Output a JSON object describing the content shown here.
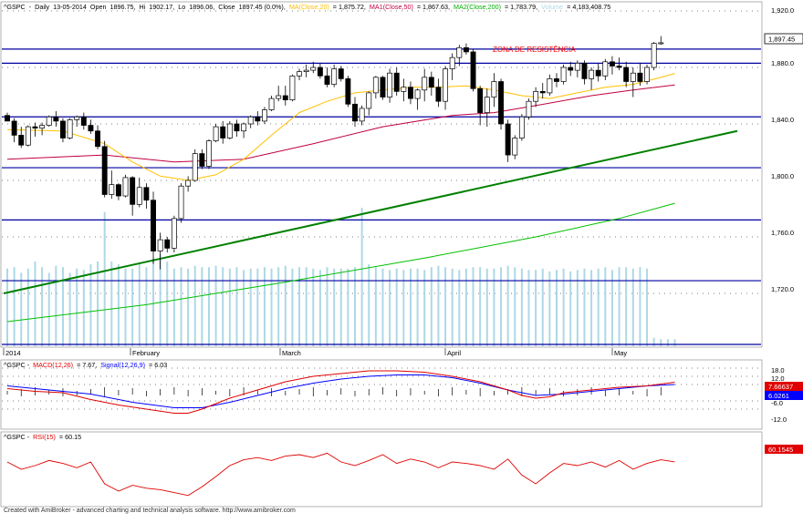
{
  "header": {
    "symbol": "^GSPC",
    "timeframe": "Daily",
    "date": "13-05-2014",
    "open_label": "Open",
    "open": "1896.75",
    "hi_label": "Hi",
    "hi": "1902.17",
    "lo_label": "Lo",
    "lo": "1896.06",
    "close_label": "Close",
    "close": "1897.45 (0.0%)",
    "ma_label": "MA(Close,20)",
    "ma_value": "= 1,875.72,",
    "ma1_label": "MA1(Close,50)",
    "ma1_value": "= 1,867.63,",
    "ma2_label": "MA2(Close,200)",
    "ma2_value": "= 1,783.79,",
    "volume_label": "Volume",
    "volume_value": "= 4,183,408.75"
  },
  "annotation": "ZONA DE RESISTÊNCIA",
  "month_labels": [
    "2014",
    "February",
    "March",
    "April",
    "May"
  ],
  "price_axis": {
    "ticks": [
      "1,920.0",
      "1,880.0",
      "1,840.0",
      "1,800.0",
      "1,760.0",
      "1,720.0"
    ],
    "last_price": "1,897.45"
  },
  "macd_panel": {
    "title_symbol": "^GSPC -",
    "macd_label": "MACD(12,26)",
    "macd_value": "= 7.67,",
    "signal_label": "Signal(12,26,9)",
    "signal_value": "= 6.03",
    "ticks": [
      "18.0",
      "12.0",
      "6.0",
      "-6.0",
      "-12.0"
    ],
    "badge_macd": "7.66637",
    "badge_signal": "6.0261"
  },
  "rsi_panel": {
    "title_symbol": "^GSPC -",
    "rsi_label": "RSI(15)",
    "rsi_value": "= 60.15",
    "badge": "60.1545"
  },
  "footer": "Created with AmiBroker - advanced charting and technical analysis software. http://www.amibroker.com",
  "colors": {
    "up": "#ffffff",
    "down": "#000000",
    "ma20": "#ffc000",
    "ma50": "#c00040",
    "ma200": "#00c000",
    "trend": "#008000",
    "hlines": "#0000a0",
    "volume": "#add8e6",
    "macd": "#e00000",
    "signal": "#0000ff"
  },
  "chart_data": {
    "type": "candlestick",
    "title": "^GSPC - Daily",
    "x_start": "2014-01-02",
    "x_end": "2014-05-13",
    "ylim": [
      1690,
      1930
    ],
    "grid": true,
    "horizontal_levels": [
      1893,
      1883,
      1845,
      1809,
      1772,
      1729
    ],
    "trendline": [
      [
        0,
        1720
      ],
      [
        116,
        1835
      ]
    ],
    "candles": [
      [
        1846,
        1848,
        1842,
        1842
      ],
      [
        1842,
        1844,
        1827,
        1832
      ],
      [
        1832,
        1838,
        1823,
        1825
      ],
      [
        1825,
        1839,
        1824,
        1838
      ],
      [
        1838,
        1841,
        1831,
        1837
      ],
      [
        1837,
        1841,
        1832,
        1839
      ],
      [
        1839,
        1846,
        1838,
        1845
      ],
      [
        1845,
        1849,
        1838,
        1842
      ],
      [
        1842,
        1844,
        1827,
        1830
      ],
      [
        1830,
        1844,
        1829,
        1843
      ],
      [
        1843,
        1846,
        1838,
        1845
      ],
      [
        1845,
        1848,
        1836,
        1839
      ],
      [
        1839,
        1843,
        1833,
        1835
      ],
      [
        1835,
        1839,
        1822,
        1824
      ],
      [
        1824,
        1828,
        1788,
        1790
      ],
      [
        1790,
        1807,
        1787,
        1797
      ],
      [
        1797,
        1798,
        1786,
        1789
      ],
      [
        1789,
        1804,
        1788,
        1802
      ],
      [
        1802,
        1803,
        1775,
        1783
      ],
      [
        1783,
        1802,
        1781,
        1795
      ],
      [
        1795,
        1798,
        1780,
        1786
      ],
      [
        1786,
        1792,
        1741,
        1750
      ],
      [
        1750,
        1763,
        1737,
        1758
      ],
      [
        1758,
        1760,
        1749,
        1752
      ],
      [
        1752,
        1775,
        1749,
        1773
      ],
      [
        1773,
        1798,
        1770,
        1796
      ],
      [
        1796,
        1803,
        1792,
        1800
      ],
      [
        1800,
        1822,
        1799,
        1819
      ],
      [
        1819,
        1822,
        1808,
        1810
      ],
      [
        1810,
        1829,
        1808,
        1828
      ],
      [
        1828,
        1840,
        1827,
        1838
      ],
      [
        1838,
        1842,
        1826,
        1830
      ],
      [
        1830,
        1842,
        1829,
        1840
      ],
      [
        1840,
        1843,
        1831,
        1835
      ],
      [
        1835,
        1841,
        1830,
        1840
      ],
      [
        1840,
        1846,
        1837,
        1845
      ],
      [
        1845,
        1849,
        1839,
        1842
      ],
      [
        1842,
        1852,
        1840,
        1850
      ],
      [
        1850,
        1860,
        1849,
        1858
      ],
      [
        1858,
        1867,
        1856,
        1860
      ],
      [
        1860,
        1867,
        1853,
        1857
      ],
      [
        1857,
        1875,
        1856,
        1874
      ],
      [
        1874,
        1879,
        1871,
        1877
      ],
      [
        1877,
        1882,
        1873,
        1878
      ],
      [
        1878,
        1884,
        1876,
        1880
      ],
      [
        1880,
        1883,
        1872,
        1874
      ],
      [
        1874,
        1880,
        1866,
        1868
      ],
      [
        1868,
        1882,
        1866,
        1879
      ],
      [
        1879,
        1881,
        1870,
        1872
      ],
      [
        1872,
        1874,
        1852,
        1854
      ],
      [
        1854,
        1859,
        1838,
        1842
      ],
      [
        1842,
        1853,
        1839,
        1851
      ],
      [
        1851,
        1863,
        1846,
        1862
      ],
      [
        1862,
        1874,
        1858,
        1873
      ],
      [
        1873,
        1874,
        1857,
        1859
      ],
      [
        1859,
        1879,
        1855,
        1876
      ],
      [
        1876,
        1880,
        1860,
        1863
      ],
      [
        1863,
        1872,
        1856,
        1866
      ],
      [
        1866,
        1870,
        1854,
        1858
      ],
      [
        1858,
        1865,
        1850,
        1864
      ],
      [
        1864,
        1879,
        1856,
        1873
      ],
      [
        1873,
        1877,
        1860,
        1866
      ],
      [
        1866,
        1872,
        1852,
        1856
      ],
      [
        1856,
        1881,
        1850,
        1879
      ],
      [
        1879,
        1890,
        1871,
        1887
      ],
      [
        1887,
        1896,
        1881,
        1894
      ],
      [
        1894,
        1897,
        1889,
        1891
      ],
      [
        1891,
        1893,
        1863,
        1865
      ],
      [
        1865,
        1867,
        1839,
        1848
      ],
      [
        1848,
        1865,
        1838,
        1859
      ],
      [
        1859,
        1876,
        1852,
        1870
      ],
      [
        1870,
        1872,
        1836,
        1840
      ],
      [
        1840,
        1843,
        1813,
        1818
      ],
      [
        1818,
        1832,
        1815,
        1830
      ],
      [
        1830,
        1847,
        1828,
        1845
      ],
      [
        1845,
        1858,
        1843,
        1856
      ],
      [
        1856,
        1866,
        1852,
        1863
      ],
      [
        1863,
        1869,
        1858,
        1862
      ],
      [
        1862,
        1875,
        1860,
        1872
      ],
      [
        1872,
        1876,
        1866,
        1870
      ],
      [
        1870,
        1882,
        1868,
        1880
      ],
      [
        1880,
        1884,
        1874,
        1878
      ],
      [
        1878,
        1885,
        1873,
        1883
      ],
      [
        1883,
        1885,
        1868,
        1872
      ],
      [
        1872,
        1880,
        1864,
        1878
      ],
      [
        1878,
        1883,
        1870,
        1874
      ],
      [
        1874,
        1886,
        1871,
        1884
      ],
      [
        1884,
        1888,
        1875,
        1881
      ],
      [
        1881,
        1887,
        1878,
        1880
      ],
      [
        1880,
        1884,
        1866,
        1870
      ],
      [
        1870,
        1880,
        1859,
        1876
      ],
      [
        1876,
        1883,
        1867,
        1870
      ],
      [
        1870,
        1882,
        1868,
        1880
      ],
      [
        1880,
        1898,
        1878,
        1897
      ],
      [
        1896.75,
        1902.17,
        1896.06,
        1897.45
      ]
    ],
    "ma20": [
      [
        0,
        1836
      ],
      [
        8,
        1835
      ],
      [
        14,
        1826
      ],
      [
        18,
        1813
      ],
      [
        22,
        1803
      ],
      [
        26,
        1800
      ],
      [
        30,
        1804
      ],
      [
        34,
        1815
      ],
      [
        38,
        1832
      ],
      [
        42,
        1848
      ],
      [
        46,
        1856
      ],
      [
        50,
        1862
      ],
      [
        54,
        1864
      ],
      [
        58,
        1866
      ],
      [
        62,
        1866
      ],
      [
        66,
        1867
      ],
      [
        70,
        1864
      ],
      [
        74,
        1860
      ],
      [
        78,
        1858
      ],
      [
        82,
        1862
      ],
      [
        86,
        1866
      ],
      [
        90,
        1868
      ],
      [
        94,
        1873
      ],
      [
        96,
        1875.72
      ]
    ],
    "ma50": [
      [
        0,
        1815
      ],
      [
        14,
        1818
      ],
      [
        24,
        1813
      ],
      [
        34,
        1815
      ],
      [
        44,
        1826
      ],
      [
        54,
        1838
      ],
      [
        64,
        1846
      ],
      [
        70,
        1848
      ],
      [
        76,
        1853
      ],
      [
        84,
        1860
      ],
      [
        90,
        1864
      ],
      [
        96,
        1867.63
      ]
    ],
    "ma200": [
      [
        0,
        1700
      ],
      [
        20,
        1712
      ],
      [
        40,
        1728
      ],
      [
        60,
        1745
      ],
      [
        76,
        1760
      ],
      [
        88,
        1773
      ],
      [
        96,
        1783.79
      ]
    ],
    "volume": [
      0.55,
      0.56,
      0.52,
      0.55,
      0.6,
      0.56,
      0.52,
      0.57,
      0.56,
      0.52,
      0.55,
      0.54,
      0.58,
      0.6,
      0.95,
      0.6,
      0.58,
      0.55,
      0.55,
      0.58,
      0.56,
      0.62,
      0.65,
      0.6,
      0.55,
      0.56,
      0.55,
      0.57,
      0.56,
      0.56,
      0.57,
      0.56,
      0.55,
      0.56,
      0.54,
      0.55,
      0.55,
      0.56,
      0.55,
      0.56,
      0.57,
      0.55,
      0.56,
      0.56,
      0.55,
      0.54,
      0.56,
      0.55,
      0.55,
      0.55,
      0.56,
      0.98,
      0.58,
      0.56,
      0.55,
      0.54,
      0.55,
      0.54,
      0.55,
      0.55,
      0.54,
      0.56,
      0.57,
      0.56,
      0.55,
      0.54,
      0.55,
      0.56,
      0.56,
      0.55,
      0.55,
      0.56,
      0.57,
      0.56,
      0.55,
      0.54,
      0.54,
      0.55,
      0.53,
      0.54,
      0.55,
      0.53,
      0.54,
      0.55,
      0.54,
      0.55,
      0.56,
      0.54,
      0.56,
      0.56,
      0.55,
      0.56,
      0.55,
      0.06,
      0.05,
      0.05,
      0.05
    ],
    "macd": [
      [
        0,
        3
      ],
      [
        4,
        1
      ],
      [
        8,
        0
      ],
      [
        12,
        -5
      ],
      [
        16,
        -9
      ],
      [
        20,
        -12
      ],
      [
        24,
        -15
      ],
      [
        26,
        -15
      ],
      [
        28,
        -12
      ],
      [
        32,
        -4
      ],
      [
        36,
        2
      ],
      [
        40,
        8
      ],
      [
        44,
        12
      ],
      [
        48,
        14
      ],
      [
        52,
        16
      ],
      [
        56,
        16
      ],
      [
        60,
        15
      ],
      [
        64,
        12
      ],
      [
        68,
        8
      ],
      [
        70,
        5
      ],
      [
        72,
        2
      ],
      [
        74,
        -2
      ],
      [
        76,
        -4
      ],
      [
        78,
        -3
      ],
      [
        80,
        0
      ],
      [
        84,
        2
      ],
      [
        88,
        4
      ],
      [
        92,
        5
      ],
      [
        96,
        7.67
      ]
    ],
    "signal": [
      [
        0,
        5
      ],
      [
        6,
        2
      ],
      [
        12,
        -1
      ],
      [
        18,
        -7
      ],
      [
        24,
        -11
      ],
      [
        28,
        -11
      ],
      [
        32,
        -7
      ],
      [
        36,
        -2
      ],
      [
        40,
        3
      ],
      [
        44,
        7
      ],
      [
        48,
        10
      ],
      [
        52,
        12
      ],
      [
        56,
        13
      ],
      [
        60,
        13
      ],
      [
        64,
        11
      ],
      [
        68,
        7
      ],
      [
        72,
        2
      ],
      [
        76,
        -2
      ],
      [
        80,
        -1
      ],
      [
        84,
        1
      ],
      [
        88,
        3
      ],
      [
        92,
        5
      ],
      [
        96,
        6.03
      ]
    ],
    "macd_ylim": [
      -16,
      20
    ],
    "rsi": [
      [
        0,
        60
      ],
      [
        2,
        50
      ],
      [
        4,
        55
      ],
      [
        6,
        62
      ],
      [
        8,
        58
      ],
      [
        10,
        52
      ],
      [
        12,
        60
      ],
      [
        14,
        30
      ],
      [
        16,
        20
      ],
      [
        18,
        28
      ],
      [
        20,
        24
      ],
      [
        22,
        22
      ],
      [
        24,
        18
      ],
      [
        26,
        14
      ],
      [
        28,
        26
      ],
      [
        30,
        40
      ],
      [
        32,
        55
      ],
      [
        34,
        63
      ],
      [
        36,
        66
      ],
      [
        38,
        62
      ],
      [
        40,
        68
      ],
      [
        42,
        70
      ],
      [
        44,
        66
      ],
      [
        46,
        72
      ],
      [
        48,
        60
      ],
      [
        50,
        55
      ],
      [
        52,
        62
      ],
      [
        54,
        70
      ],
      [
        56,
        58
      ],
      [
        58,
        64
      ],
      [
        60,
        60
      ],
      [
        62,
        52
      ],
      [
        64,
        60
      ],
      [
        66,
        58
      ],
      [
        68,
        55
      ],
      [
        70,
        50
      ],
      [
        72,
        64
      ],
      [
        74,
        42
      ],
      [
        76,
        30
      ],
      [
        78,
        45
      ],
      [
        80,
        58
      ],
      [
        82,
        55
      ],
      [
        84,
        60
      ],
      [
        86,
        53
      ],
      [
        88,
        62
      ],
      [
        90,
        50
      ],
      [
        92,
        58
      ],
      [
        94,
        63
      ],
      [
        96,
        60.15
      ]
    ],
    "rsi_ylim": [
      0,
      100
    ]
  }
}
